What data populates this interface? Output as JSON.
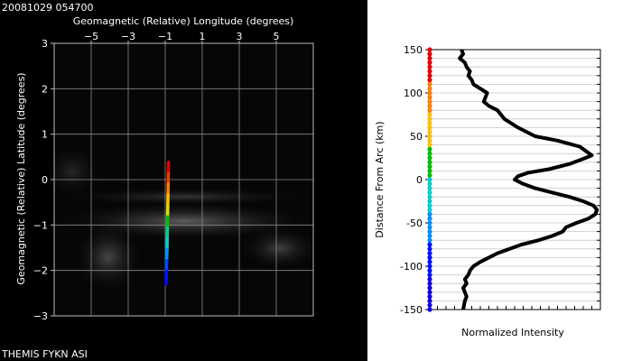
{
  "header": {
    "timestamp": "20081029 054700",
    "footer": "THEMIS FYKN ASI"
  },
  "chart_data": [
    {
      "type": "scatter",
      "title": "",
      "xlabel": "Geomagnetic (Relative) Longitude (degrees)",
      "ylabel": "Geomagnetic (Relative) Latitude (degrees)",
      "xlim": [
        -7,
        7
      ],
      "ylim": [
        -3,
        3
      ],
      "xticks": [
        -5,
        -3,
        -1,
        1,
        3,
        5
      ],
      "yticks": [
        -3,
        -2,
        -1,
        0,
        1,
        2,
        3
      ],
      "x_tick_labels": [
        "−5",
        "−3",
        "−1",
        "1",
        "3",
        "5"
      ],
      "y_tick_labels": [
        "−3",
        "−2",
        "−1",
        "0",
        "1",
        "2",
        "3"
      ],
      "grid": true,
      "background": "all-sky camera image",
      "series": [
        {
          "name": "",
          "x": [
            -0.82,
            -0.83,
            -0.84,
            -0.85,
            -0.86,
            -0.87,
            -0.88,
            -0.89,
            -0.9,
            -0.92,
            -0.93,
            -0.95
          ],
          "y": [
            0.38,
            0.14,
            -0.1,
            -0.34,
            -0.58,
            -0.82,
            -1.06,
            -1.3,
            -1.54,
            -1.78,
            -2.02,
            -2.3
          ],
          "colors": [
            "#e60000",
            "#f03c00",
            "#ff7f00",
            "#ffbf00",
            "#d9e000",
            "#00c000",
            "#00d080",
            "#00d0d0",
            "#0090ff",
            "#0048ff",
            "#0010ff",
            "#1000e0"
          ]
        }
      ]
    },
    {
      "type": "line",
      "title": "",
      "xlabel": "Normalized Intensity",
      "ylabel": "Distance From Arc (km)",
      "ylim": [
        -150,
        150
      ],
      "yticks": [
        -150,
        -100,
        -50,
        0,
        50,
        100,
        150
      ],
      "xlim": [
        0,
        1
      ],
      "grid": true,
      "series": [
        {
          "name": "",
          "x": [
            0.19,
            0.2,
            0.18,
            0.21,
            0.22,
            0.24,
            0.23,
            0.25,
            0.26,
            0.3,
            0.34,
            0.33,
            0.32,
            0.35,
            0.4,
            0.42,
            0.44,
            0.48,
            0.52,
            0.62,
            0.75,
            0.88,
            0.95,
            0.9,
            0.82,
            0.7,
            0.58,
            0.52,
            0.5,
            0.55,
            0.62,
            0.72,
            0.82,
            0.9,
            0.96,
            0.98,
            0.97,
            0.93,
            0.86,
            0.8,
            0.78,
            0.72,
            0.64,
            0.54,
            0.4,
            0.3,
            0.26,
            0.24,
            0.23,
            0.21,
            0.22,
            0.2,
            0.21,
            0.22,
            0.21,
            0.2
          ],
          "y": [
            150,
            145,
            140,
            135,
            130,
            125,
            120,
            115,
            110,
            105,
            100,
            95,
            90,
            85,
            80,
            75,
            70,
            65,
            60,
            50,
            45,
            38,
            28,
            24,
            18,
            12,
            8,
            4,
            0,
            -5,
            -10,
            -15,
            -20,
            -25,
            -30,
            -35,
            -40,
            -45,
            -50,
            -55,
            -60,
            -65,
            -70,
            -75,
            -85,
            -95,
            -100,
            -105,
            -110,
            -115,
            -120,
            -125,
            -130,
            -135,
            -140,
            -150
          ],
          "color": "#000000"
        },
        {
          "name": "",
          "type": "color-scale",
          "colors": [
            "#e60000",
            "#ff7f00",
            "#ffbf00",
            "#00c000",
            "#00d0d0",
            "#0090ff",
            "#0010ff",
            "#1000e0"
          ]
        }
      ]
    }
  ]
}
